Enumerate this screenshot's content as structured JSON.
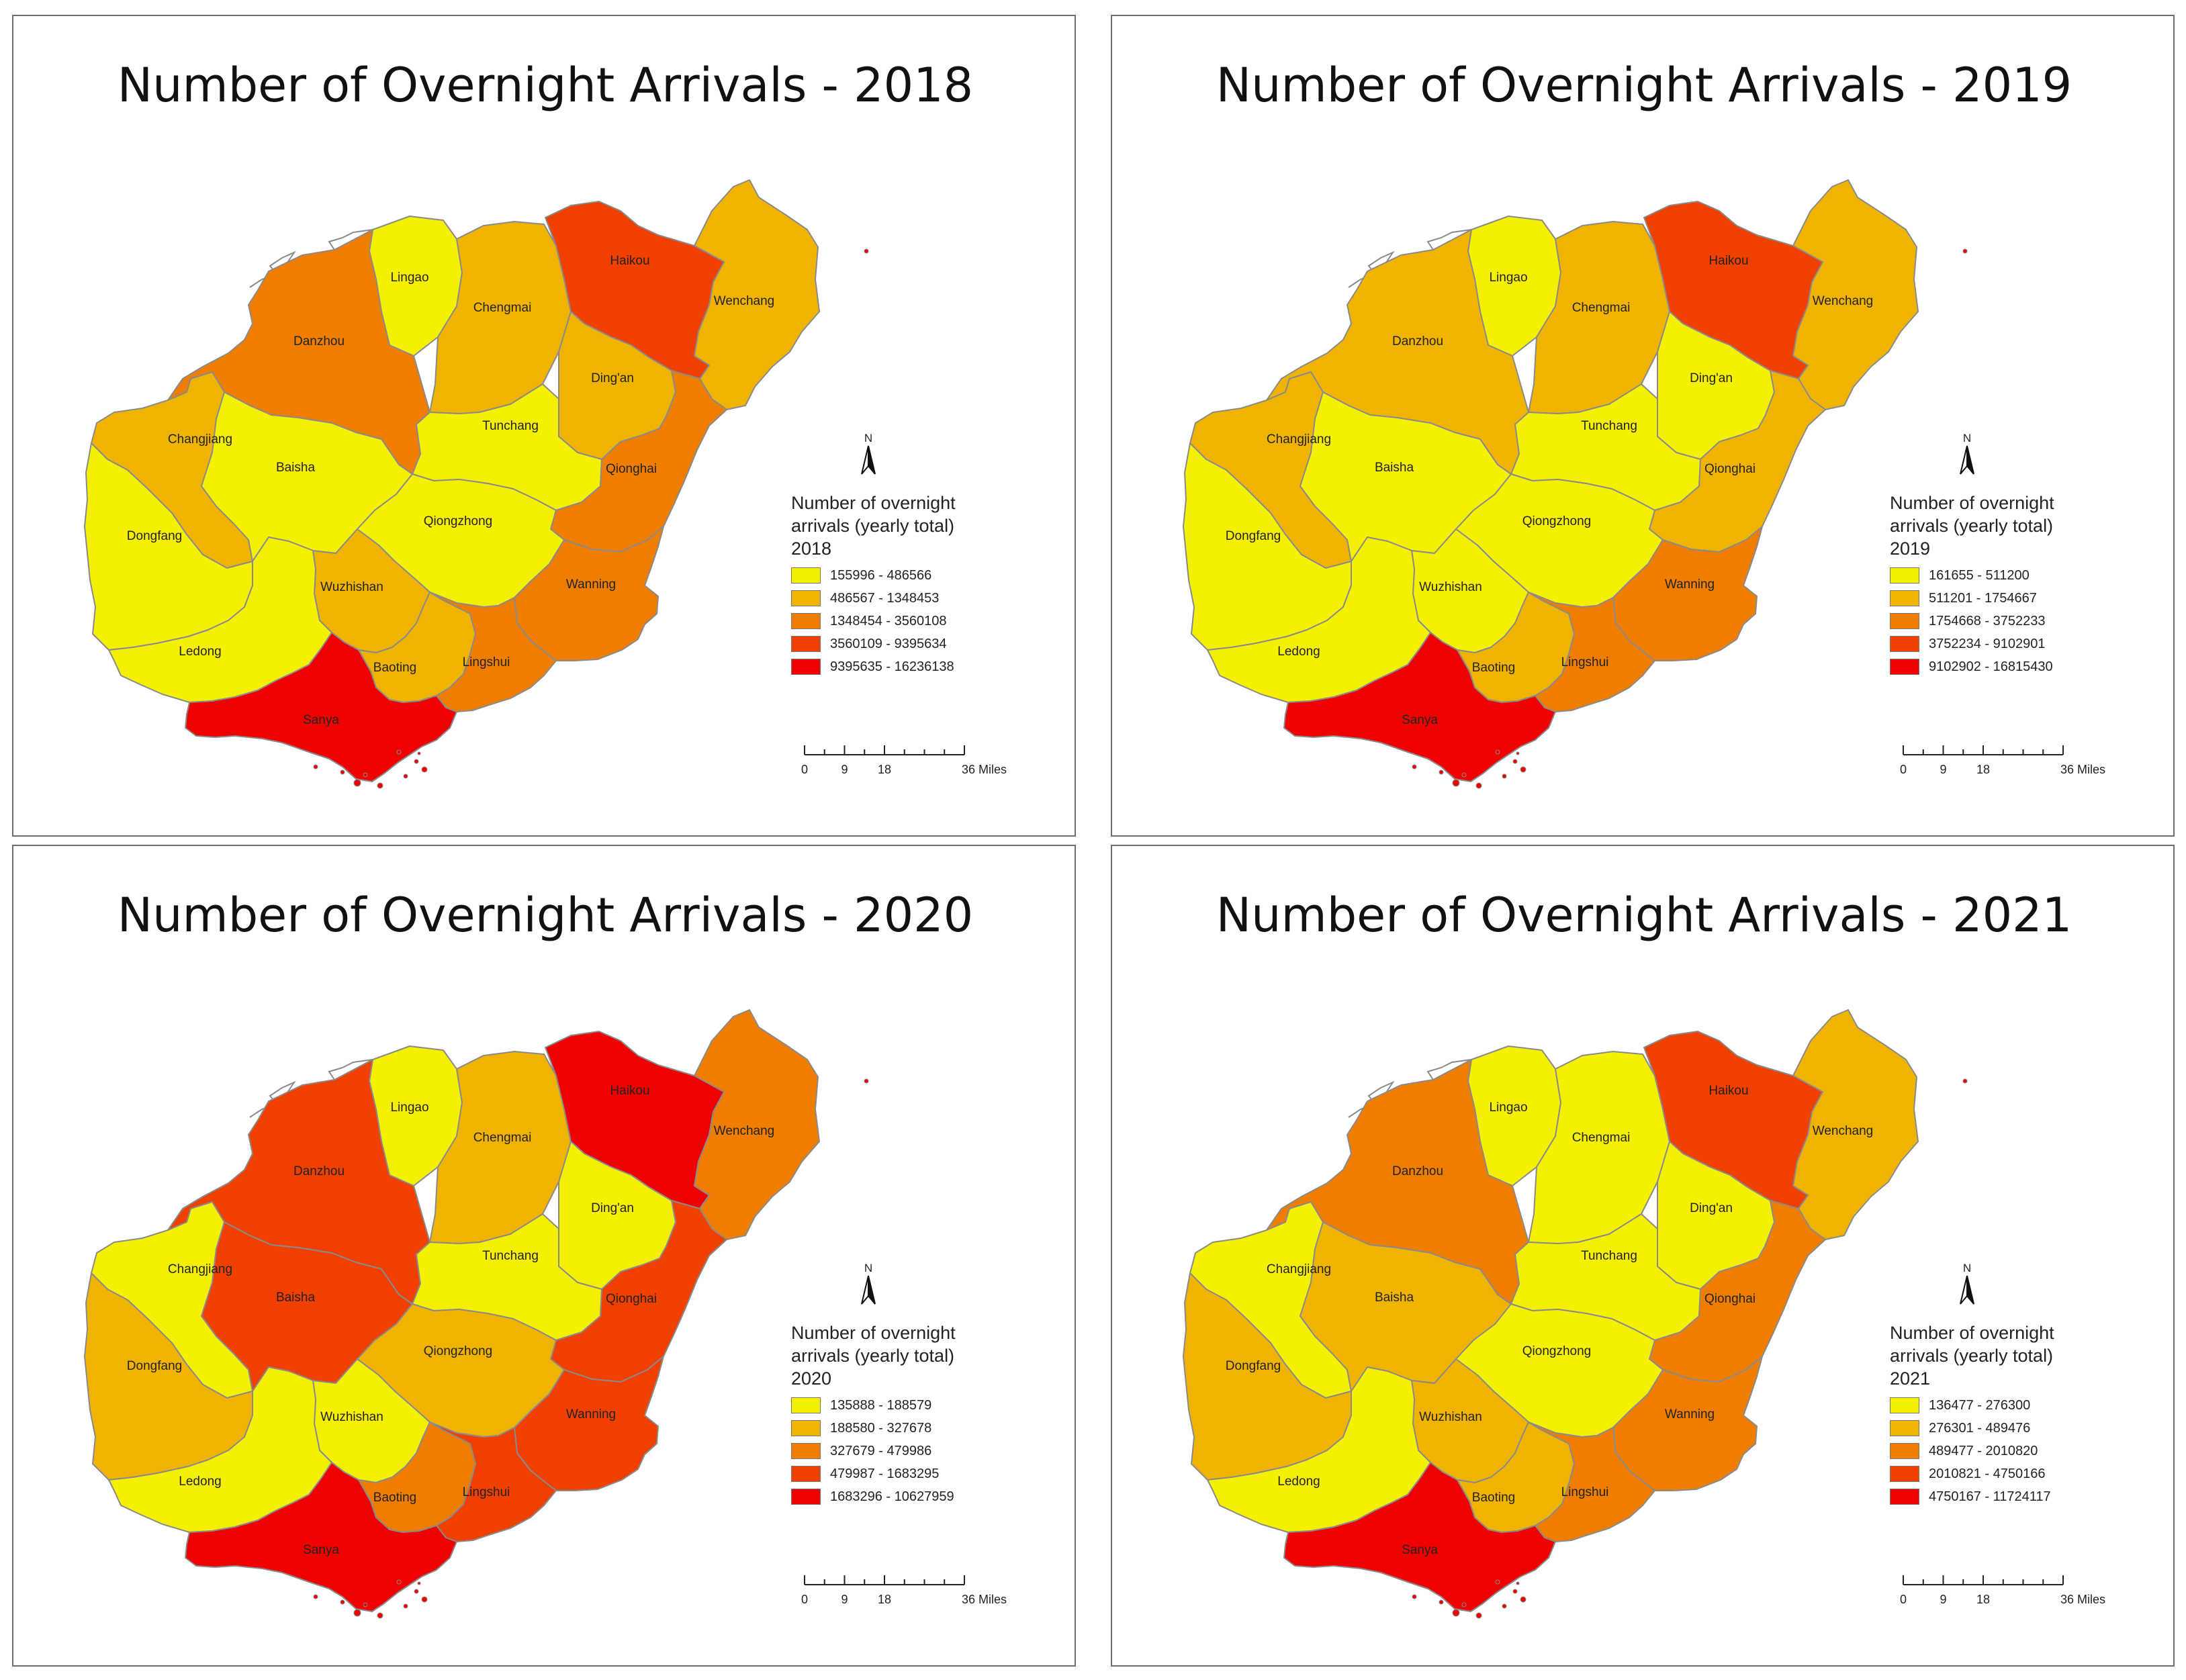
{
  "colors": {
    "c1": "#f5f000",
    "c2": "#f0b400",
    "c3": "#ee7d00",
    "c4": "#f04000",
    "c5": "#f00000"
  },
  "panels": [
    {
      "title": "Number of Overnight Arrivals - 2018",
      "legend_title": [
        "Number of overnight",
        "arrivals (yearly total)",
        "2018"
      ],
      "classes": [
        "155996 - 486566",
        "486567 - 1348453",
        "1348454 - 3560108",
        "3560109 - 9395634",
        "9395635 - 16236138"
      ],
      "regions": {
        "Lingao": 1,
        "Chengmai": 2,
        "Haikou": 4,
        "Wenchang": 2,
        "Danzhou": 3,
        "Ding'an": 2,
        "Changjiang": 2,
        "Baisha": 1,
        "Tunchang": 1,
        "Qionghai": 3,
        "Dongfang": 1,
        "Qiongzhong": 1,
        "Wuzhishan": 2,
        "Wanning": 3,
        "Ledong": 1,
        "Baoting": 2,
        "Lingshui": 3,
        "Sanya": 5
      }
    },
    {
      "title": "Number of Overnight Arrivals - 2019",
      "legend_title": [
        "Number of overnight",
        "arrivals (yearly total)",
        "2019"
      ],
      "classes": [
        "161655 - 511200",
        "511201 - 1754667",
        "1754668 - 3752233",
        "3752234 - 9102901",
        "9102902 - 16815430"
      ],
      "regions": {
        "Lingao": 1,
        "Chengmai": 2,
        "Haikou": 4,
        "Wenchang": 2,
        "Danzhou": 2,
        "Ding'an": 1,
        "Changjiang": 2,
        "Baisha": 1,
        "Tunchang": 1,
        "Qionghai": 2,
        "Dongfang": 1,
        "Qiongzhong": 1,
        "Wuzhishan": 1,
        "Wanning": 3,
        "Ledong": 1,
        "Baoting": 2,
        "Lingshui": 3,
        "Sanya": 5
      }
    },
    {
      "title": "Number of Overnight Arrivals - 2020",
      "legend_title": [
        "Number of overnight",
        "arrivals (yearly total)",
        "2020"
      ],
      "classes": [
        "135888 - 188579",
        "188580 - 327678",
        "327679 - 479986",
        "479987 - 1683295",
        "1683296 - 10627959"
      ],
      "regions": {
        "Lingao": 1,
        "Chengmai": 2,
        "Haikou": 5,
        "Wenchang": 3,
        "Danzhou": 4,
        "Ding'an": 1,
        "Changjiang": 1,
        "Baisha": 4,
        "Tunchang": 1,
        "Qionghai": 4,
        "Dongfang": 2,
        "Qiongzhong": 2,
        "Wuzhishan": 1,
        "Wanning": 4,
        "Ledong": 1,
        "Baoting": 3,
        "Lingshui": 4,
        "Sanya": 5
      }
    },
    {
      "title": "Number of Overnight Arrivals - 2021",
      "legend_title": [
        "Number of overnight",
        "arrivals (yearly total)",
        "2021"
      ],
      "classes": [
        "136477 - 276300",
        "276301 - 489476",
        "489477 - 2010820",
        "2010821 - 4750166",
        "4750167 - 11724117"
      ],
      "regions": {
        "Lingao": 1,
        "Chengmai": 1,
        "Haikou": 4,
        "Wenchang": 2,
        "Danzhou": 3,
        "Ding'an": 1,
        "Changjiang": 1,
        "Baisha": 2,
        "Tunchang": 1,
        "Qionghai": 3,
        "Dongfang": 2,
        "Qiongzhong": 1,
        "Wuzhishan": 2,
        "Wanning": 3,
        "Ledong": 1,
        "Baoting": 2,
        "Lingshui": 3,
        "Sanya": 5
      }
    }
  ],
  "north_label": "N",
  "scale": {
    "ticks": [
      "0",
      "9",
      "18",
      "36 Miles"
    ]
  }
}
